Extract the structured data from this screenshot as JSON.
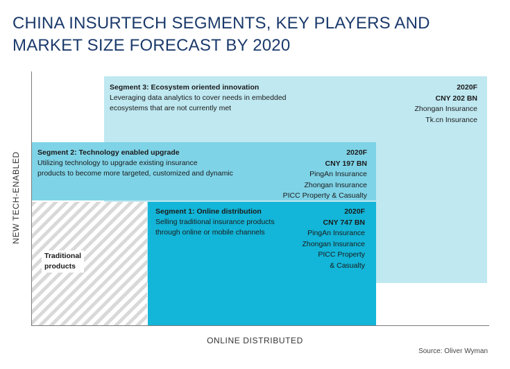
{
  "title": {
    "line1": "CHINA INSURTECH SEGMENTS, KEY PLAYERS AND",
    "line2": "MARKET SIZE FORECAST BY 2020"
  },
  "axes": {
    "y_label": "NEW TECH-ENABLED",
    "x_label": "ONLINE DISTRIBUTED"
  },
  "source": "Source: Oliver Wyman",
  "segments": {
    "seg3": {
      "title": "Segment 3: Ecosystem oriented innovation",
      "desc": [
        "Leveraging data analytics to cover needs in embedded",
        "ecosystems that are not currently met"
      ],
      "year": "2020F",
      "value": "CNY 202 BN",
      "players": [
        "Zhongan Insurance",
        "Tk.cn Insurance"
      ]
    },
    "seg2": {
      "title": "Segment 2: Technology enabled upgrade",
      "desc": [
        "Utilizing technology to upgrade existing insurance",
        "products to become more targeted, customized and dynamic"
      ],
      "year": "2020F",
      "value": "CNY 197 BN",
      "players": [
        "PingAn Insurance",
        "Zhongan Insurance",
        "PICC Property & Casualty"
      ]
    },
    "seg1": {
      "title": "Segment 1: Online distribution",
      "desc": [
        "Selling traditional insurance products",
        "through online or mobile channels"
      ],
      "year": "2020F",
      "value": "CNY 747 BN",
      "players": [
        "PingAn Insurance",
        "Zhongan Insurance",
        "PICC Property",
        "& Casualty"
      ]
    },
    "traditional": {
      "label": [
        "Traditional",
        "products"
      ]
    }
  },
  "colors": {
    "title": "#1b3a6b",
    "seg3": "#bfe8f1",
    "seg2": "#7fd3e7",
    "seg1": "#13b5d8"
  }
}
